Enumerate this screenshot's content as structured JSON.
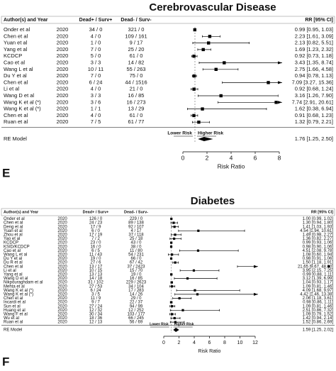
{
  "chart_data": [
    {
      "type": "forest",
      "title": "Cerebrovascular Disease",
      "panel_label": "E",
      "headers": {
        "author": "Author(s) and Year",
        "dead_pos": "Dead+ / Surv+",
        "dead_neg": "Dead- / Surv-",
        "rr": "RR [95% CI]"
      },
      "studies": [
        "Onder et al",
        "Chen et al",
        "Yuan et al",
        "Yang et al",
        "KCDCP",
        "Cao et al",
        "Wang L et al",
        "Du Y et al",
        "Chen et al",
        "Li et al",
        "Wang D et al",
        "Wang K et al (*)",
        "Wang K et al (*)",
        "Chen et al",
        "Ruan et al"
      ],
      "years": [
        2020,
        2020,
        2020,
        2020,
        2020,
        2020,
        2020,
        2020,
        2020,
        2020,
        2020,
        2020,
        2020,
        2020,
        2020
      ],
      "dead_pos": [
        "34 / 0",
        "4 / 0",
        "1 / 0",
        "7 / 0",
        "5 / 0",
        "3 / 3",
        "10 / 11",
        "7 / 0",
        "6 / 24",
        "4 / 0",
        "3 / 3",
        "3 / 6",
        "1 / 1",
        "4 / 0",
        "7 / 5"
      ],
      "dead_neg": [
        "321 / 0",
        "109 / 161",
        "9 / 17",
        "25 / 20",
        "61 / 0",
        "14 / 82",
        "55 / 263",
        "75 / 0",
        "44 / 1516",
        "21 / 0",
        "16 / 85",
        "16 / 273",
        "13 / 29",
        "61 / 0",
        "61 / 77"
      ],
      "values": [
        0.99,
        2.23,
        2.13,
        1.69,
        0.92,
        3.43,
        2.75,
        0.94,
        7.09,
        0.92,
        3.16,
        7.74,
        1.62,
        0.91,
        1.32
      ],
      "lower": [
        0.95,
        1.61,
        0.82,
        1.23,
        0.73,
        1.35,
        1.66,
        0.78,
        3.27,
        0.68,
        1.26,
        2.91,
        0.38,
        0.68,
        0.79
      ],
      "upper": [
        1.03,
        3.09,
        5.51,
        2.32,
        1.18,
        8.74,
        4.58,
        1.13,
        15.36,
        1.24,
        7.9,
        20.61,
        6.94,
        1.23,
        2.21
      ],
      "value_labels": [
        "0.99 [0.95, 1.03]",
        "2.23 [1.61, 3.09]",
        "2.13 [0.82, 5.51]",
        "1.69 [1.23, 2.32]",
        "0.92 [0.73, 1.18]",
        "3.43 [1.35, 8.74]",
        "2.75 [1.66, 4.58]",
        "0.94 [0.78, 1.13]",
        "7.09 [3.27, 15.36]",
        "0.92 [0.68, 1.24]",
        "3.16 [1.26, 7.90]",
        "7.74 [2.91, 20.61]",
        "1.62 [0.38, 6.94]",
        "0.91 [0.68, 1.23]",
        "1.32 [0.79, 2.21]"
      ],
      "summary": {
        "label": "RE Model",
        "value": 1.76,
        "lower": 1.25,
        "upper": 2.5,
        "value_label": "1.76 [1.25, 2.50]"
      },
      "lower_risk": "Lower Risk",
      "higher_risk": "Higher Risk",
      "xlabel": "Risk Ratio",
      "xlim": [
        0,
        8
      ],
      "xticks": [
        0,
        2,
        4,
        6,
        8
      ],
      "reference_line": 1,
      "color": "#000000"
    },
    {
      "type": "forest",
      "title": "Diabetes",
      "panel_label": "F",
      "headers": {
        "author": "Author(s) and Year",
        "dead_pos": "Dead+ / Surv+",
        "dead_neg": "Dead- / Surv-",
        "rr": "RR [95% CI]"
      },
      "studies": [
        "Onder et al",
        "Chen et al",
        "Deng et al",
        "Yuan et al",
        "Zhou et al",
        "Yao et al",
        "KCDCP",
        "KSID/KCDCP",
        "Cao et al",
        "Wang L et al",
        "Du Y et al",
        "Du R et al",
        "Chen et al",
        "Li et al",
        "Yang et al",
        "Wang D et al",
        "Nikpouraghdam et al",
        "Mehta et al",
        "Wang K et al (*)",
        "Wang K et al (*)",
        "Chen et al",
        "Incardi et al",
        "Sun et al",
        "Huang et al",
        "Wang F et al",
        "Wu et al",
        "Ruan et al"
      ],
      "years": [
        2020,
        2020,
        2020,
        2020,
        2020,
        2020,
        2020,
        2020,
        2020,
        2020,
        2020,
        2020,
        2020,
        2020,
        2020,
        2020,
        2020,
        2020,
        2020,
        2020,
        2020,
        2020,
        2020,
        2020,
        2020,
        2020,
        2020
      ],
      "dead_pos": [
        "126 / 0",
        "24 / 23",
        "17 / 9",
        "6 / 0",
        "17 / 19",
        "7 / 2",
        "23 / 0",
        "16 / 0",
        "6 / 5",
        "11 / 43",
        "19 / 0",
        "27 / 6",
        "13 / 17",
        "10 / 15",
        "13 / 13",
        "14 / 18",
        "31 / 102",
        "27 / 53",
        "6 / 24",
        "3 / 5",
        "11 / 9",
        "9 / 7",
        "27 / 24",
        "12 / 32",
        "30 / 34",
        "18 / 36",
        "12 / 13"
      ],
      "dead_neg": [
        "229 / 0",
        "89 / 138",
        "92 / 107",
        "4 / 17",
        "37 / 118",
        "25 / 18",
        "43 / 0",
        "38 / 0",
        "11 / 80",
        "54 / 231",
        "66 / 0",
        "67 / 42",
        "37 / 2423",
        "15 / 70",
        "19 / 0",
        "16 / 85",
        "229 / 2623",
        "34 / 104",
        "17 / 283",
        "14 / 26",
        "29 / 0",
        "22 / 37",
        "94 / 99",
        "12 / 252",
        "103 / 177",
        "66 / 245",
        "56 / 69"
      ],
      "values": [
        1.0,
        1.3,
        1.41,
        4.54,
        1.49,
        1.36,
        0.99,
        0.98,
        4.51,
        1.08,
        0.98,
        1.5,
        21.65,
        3.95,
        0.99,
        3.12,
        1.04,
        1.09,
        4.09,
        4.42,
        2.06,
        0.98,
        1.09,
        2.51,
        1.09,
        1.42,
        1.52
      ],
      "lower": [
        0.99,
        0.94,
        1.03,
        1.94,
        0.98,
        0.82,
        0.93,
        0.9,
        2.08,
        0.6,
        0.91,
        1.18,
        9.67,
        2.15,
        0.88,
        1.39,
        0.93,
        0.81,
        1.68,
        1.46,
        1.18,
        0.86,
        0.81,
        0.86,
        0.79,
        0.94,
        0.86
      ],
      "upper": [
        1.02,
        1.8,
        1.93,
        10.61,
        2.27,
        2.27,
        1.06,
        1.06,
        9.78,
        1.94,
        1.06,
        1.91,
        48.0,
        7.25,
        1.11,
        6.99,
        1.17,
        1.46,
        9.97,
        13.38,
        3.61,
        1.11,
        1.46,
        7.32,
        1.52,
        2.14,
        2.69
      ],
      "value_labels": [
        "1.00 [0.99, 1.02]",
        "1.30 [0.94, 1.80]",
        "1.41 [1.03, 1.93]",
        "4.54 [1.94, 10.61]",
        "1.49 [0.98, 2.27]",
        "1.36 [0.82, 2.27]",
        "0.99 [0.93, 1.06]",
        "0.98 [0.90, 1.06]",
        "4.51 [2.08, 9.78]",
        "1.08 [0.60, 1.94]",
        "0.98 [0.91, 1.06]",
        "1.50 [1.18, 1.91]",
        "21.65 [9.67, 48.00]",
        "3.95 [2.15, 7.25]",
        "0.99 [0.88, 1.11]",
        "3.12 [1.39, 6.99]",
        "1.04 [0.93, 1.17]",
        "1.09 [0.81, 1.46]",
        "4.09 [1.68, 9.97]",
        "4.42 [1.46, 13.38]",
        "2.06 [1.18, 3.61]",
        "0.98 [0.86, 1.11]",
        "1.09 [0.81, 1.46]",
        "2.51 [0.86, 7.32]",
        "1.09 [0.79, 1.52]",
        "1.42 [0.94, 2.14]",
        "1.52 [0.86, 2.69]"
      ],
      "summary": {
        "label": "RE Model",
        "value": 1.59,
        "lower": 1.25,
        "upper": 2.02,
        "value_label": "1.59 [1.25, 2.02]"
      },
      "lower_risk": "Lower Risk",
      "higher_risk": "Higher Risk",
      "xlabel": "Risk Ratio",
      "xlim": [
        0,
        12
      ],
      "xticks": [
        0,
        2,
        4,
        6,
        8,
        10,
        12
      ],
      "reference_line": 1,
      "color": "#000000"
    }
  ]
}
